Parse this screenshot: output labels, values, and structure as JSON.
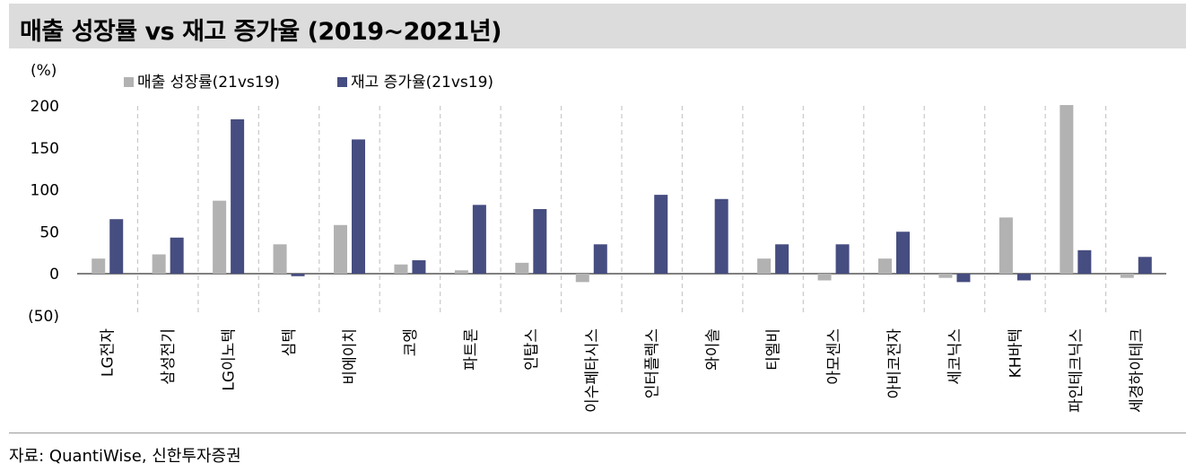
{
  "title": "매출 성장률 vs 재고 증가율 (2019~2021년)",
  "source": "자료: QuantiWise, 신한투자증권",
  "colors": {
    "title_bg": "#dcdcdc",
    "sales": "#b2b2b2",
    "inventory": "#464d80",
    "grid": "#c8c8c8"
  },
  "chart_data": {
    "type": "bar",
    "title": "매출 성장률 vs 재고 증가율 (2019~2021년)",
    "ylabel": "(%)",
    "ylim": [
      -50,
      200
    ],
    "yticks": [
      -50,
      0,
      50,
      100,
      150,
      200
    ],
    "ytick_labels": [
      "(50)",
      "0",
      "50",
      "100",
      "150",
      "200"
    ],
    "grid": "vertical dashed separators",
    "legend_position": "top-left",
    "categories": [
      "LG전자",
      "삼성전기",
      "LG이노텍",
      "심텍",
      "비에이치",
      "코엥",
      "파트론",
      "인탑스",
      "이수페타시스",
      "인터플렉스",
      "와이솔",
      "티엘비",
      "아모센스",
      "아비코전자",
      "세코닉스",
      "KH바텍",
      "파인테크닉스",
      "세경하이테크"
    ],
    "series": [
      {
        "name": "매출 성장률(21vs19)",
        "color": "#b2b2b2",
        "values": [
          18,
          23,
          87,
          35,
          58,
          11,
          4,
          13,
          -10,
          0,
          0,
          18,
          -8,
          18,
          -5,
          67,
          201,
          -5
        ]
      },
      {
        "name": "재고 증가율(21vs19)",
        "color": "#464d80",
        "values": [
          65,
          43,
          184,
          -3,
          160,
          16,
          82,
          77,
          35,
          94,
          89,
          35,
          35,
          50,
          -10,
          -8,
          28,
          20
        ]
      }
    ]
  }
}
